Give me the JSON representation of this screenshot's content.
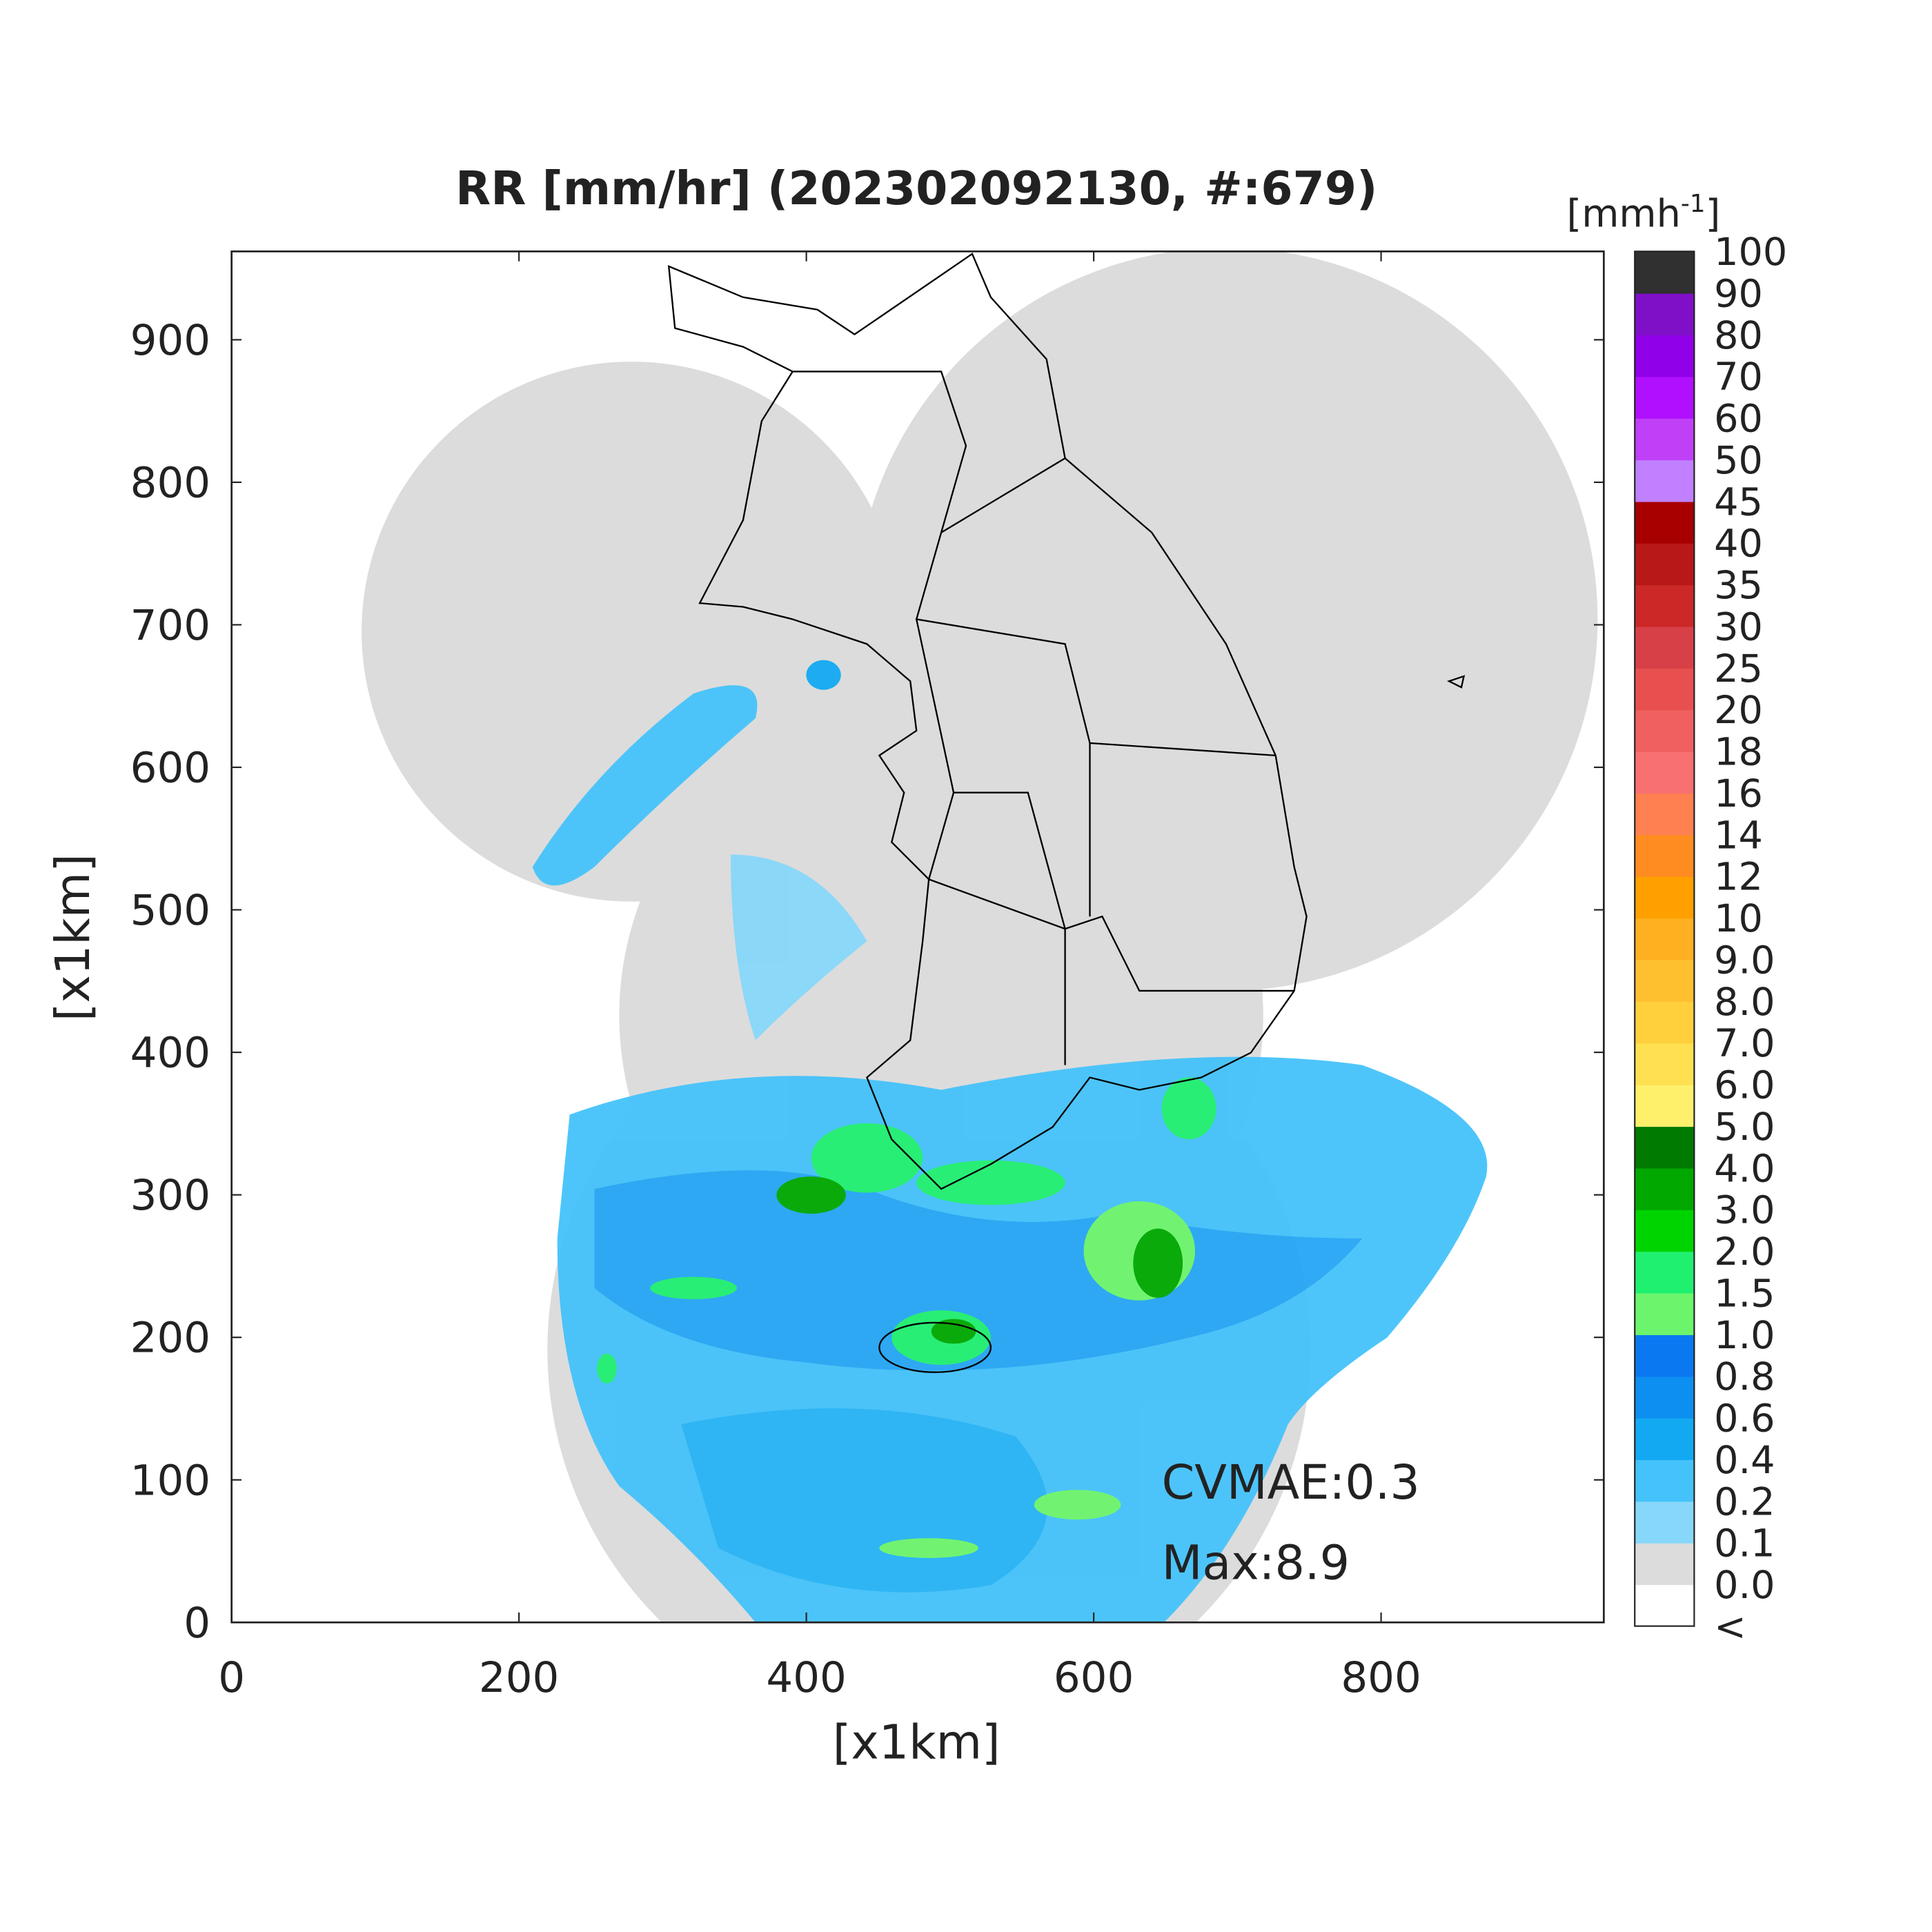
{
  "chart_data": {
    "type": "radar-map",
    "title": "RR [mm/hr] (202302092130, #:679)",
    "xlabel": "[x1km]",
    "ylabel": "[x1km]",
    "xlim": [
      0,
      955
    ],
    "ylim": [
      0,
      962
    ],
    "xticks": [
      0,
      200,
      400,
      600,
      800
    ],
    "yticks": [
      0,
      100,
      200,
      300,
      400,
      500,
      600,
      700,
      800,
      900
    ],
    "annotations": [
      "CVMAE:0.3",
      "Max:8.9"
    ],
    "colorbar": {
      "label_base": "[mmh",
      "label_exponent": "-1",
      "label_close": "]",
      "ticks": [
        "<",
        {
          "value": 0,
          "label": "0.0"
        },
        0.1,
        0.2,
        0.4,
        0.6,
        0.8,
        {
          "value": 1,
          "label": "1.0"
        },
        1.5,
        {
          "value": 2,
          "label": "2.0"
        },
        {
          "value": 3,
          "label": "3.0"
        },
        {
          "value": 4,
          "label": "4.0"
        },
        {
          "value": 5,
          "label": "5.0"
        },
        {
          "value": 6,
          "label": "6.0"
        },
        {
          "value": 7,
          "label": "7.0"
        },
        {
          "value": 8,
          "label": "8.0"
        },
        {
          "value": 9,
          "label": "9.0"
        },
        10,
        12,
        14,
        16,
        18,
        20,
        25,
        30,
        35,
        40,
        45,
        50,
        60,
        70,
        80,
        90,
        100
      ],
      "colors": [
        "#ffffff",
        "#dcdcdc",
        "#87d7fa",
        "#44c2fa",
        "#12a9f2",
        "#0c8ff0",
        "#0a78f0",
        "#6cf56c",
        "#20f070",
        "#00d400",
        "#00a800",
        "#007a00",
        "#fff06c",
        "#ffe050",
        "#ffd03c",
        "#ffc030",
        "#ffb020",
        "#ffa000",
        "#ff8c20",
        "#ff8050",
        "#f87070",
        "#f06060",
        "#e85050",
        "#d84048",
        "#cc2828",
        "#b81818",
        "#a80000",
        "#c080ff",
        "#c040f8",
        "#b010ff",
        "#9000e8",
        "#8010c8",
        "#303030"
      ]
    }
  }
}
